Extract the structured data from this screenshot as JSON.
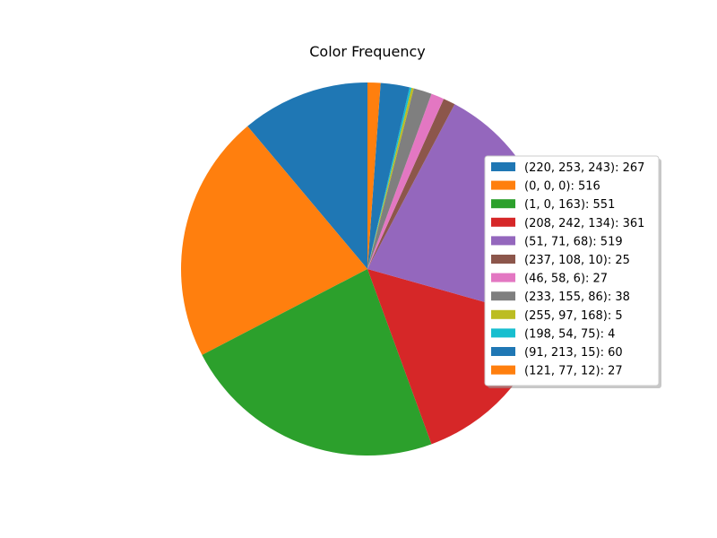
{
  "chart_data": {
    "type": "pie",
    "title": "Color Frequency",
    "start_angle_deg": 90,
    "direction": "counterclockwise",
    "legend_position": "center-right",
    "slices": [
      {
        "label": "(220, 253, 243): 267",
        "value": 267,
        "color": "#1f77b4"
      },
      {
        "label": "(0, 0, 0): 516",
        "value": 516,
        "color": "#ff7f0e"
      },
      {
        "label": "(1, 0, 163): 551",
        "value": 551,
        "color": "#2ca02c"
      },
      {
        "label": "(208, 242, 134): 361",
        "value": 361,
        "color": "#d62728"
      },
      {
        "label": "(51, 71, 68): 519",
        "value": 519,
        "color": "#9467bd"
      },
      {
        "label": "(237, 108, 10): 25",
        "value": 25,
        "color": "#8c564b"
      },
      {
        "label": "(46, 58, 6): 27",
        "value": 27,
        "color": "#e377c2"
      },
      {
        "label": "(233, 155, 86): 38",
        "value": 38,
        "color": "#7f7f7f"
      },
      {
        "label": "(255, 97, 168): 5",
        "value": 5,
        "color": "#bcbd22"
      },
      {
        "label": "(198, 54, 75): 4",
        "value": 4,
        "color": "#17becf"
      },
      {
        "label": "(91, 213, 15): 60",
        "value": 60,
        "color": "#1f77b4"
      },
      {
        "label": "(121, 77, 12): 27",
        "value": 27,
        "color": "#ff7f0e"
      }
    ]
  }
}
